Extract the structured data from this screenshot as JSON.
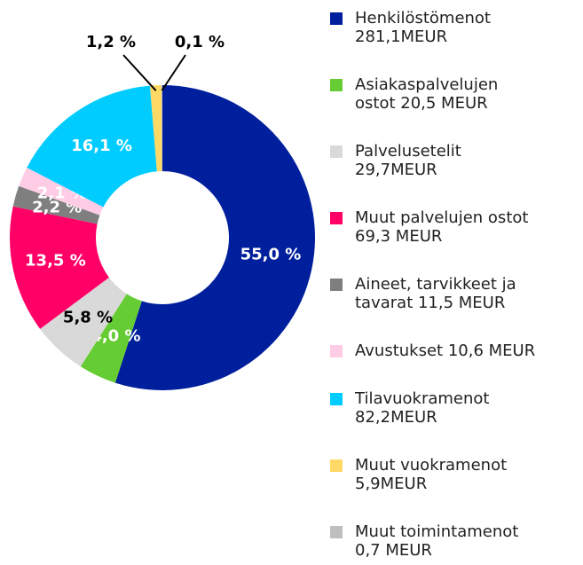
{
  "chart_data": {
    "type": "donut",
    "categories": [
      "Henkilöstömenot\n281,1MEUR",
      "Asiakaspalvelujen\nostot 20,5 MEUR",
      "Palvelusetelit\n29,7MEUR",
      "Muut palvelujen ostot\n69,3 MEUR",
      "Aineet, tarvikkeet ja\ntavarat 11,5 MEUR",
      "Avustukset 10,6 MEUR",
      "Tilavuokramenot\n82,2MEUR",
      "Muut vuokramenot\n5,9MEUR",
      "Muut toimintamenot\n0,7 MEUR"
    ],
    "values": [
      55.0,
      4.0,
      5.8,
      13.5,
      2.2,
      2.1,
      16.1,
      1.2,
      0.1
    ],
    "value_labels": [
      "55,0 %",
      "4,0 %",
      "5,8 %",
      "13,5 %",
      "2,2 %",
      "2,1 %",
      "16,1 %",
      "1,2 %",
      "0,1 %"
    ],
    "colors": [
      "#001f9c",
      "#66cc33",
      "#d9d9d9",
      "#ff0066",
      "#7f7f7f",
      "#ffcce6",
      "#00ccff",
      "#ffd966",
      "#bfbfbf"
    ],
    "label_colors": [
      "#ffffff",
      "#ffffff",
      "#000000",
      "#ffffff",
      "#ffffff",
      "#ffffff",
      "#ffffff",
      "#000000",
      "#000000"
    ]
  }
}
